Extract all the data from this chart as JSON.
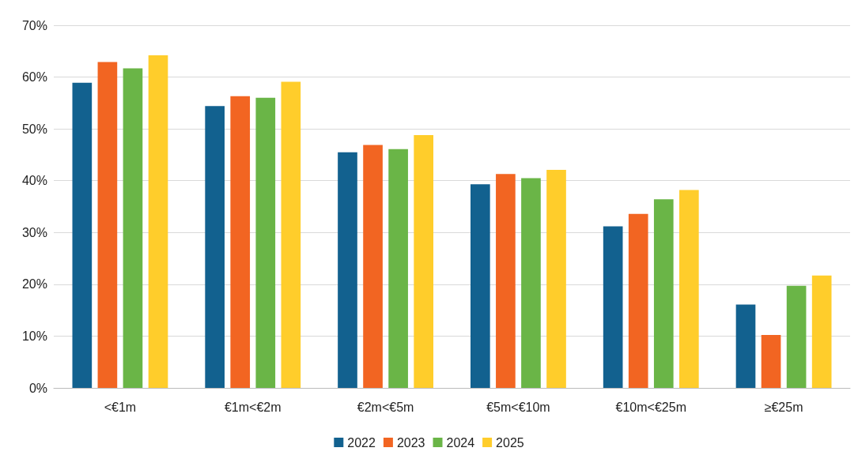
{
  "chart_data": {
    "type": "bar",
    "categories": [
      "<€1m",
      "€1m<€2m",
      "€2m<€5m",
      "€5m<€10m",
      "€10m<€25m",
      "≥€25m"
    ],
    "series": [
      {
        "name": "2022",
        "color": "#12618f",
        "values": [
          58.9,
          54.4,
          45.5,
          39.3,
          31.2,
          16.1
        ]
      },
      {
        "name": "2023",
        "color": "#f26522",
        "values": [
          62.9,
          56.3,
          46.9,
          41.3,
          33.6,
          10.2
        ]
      },
      {
        "name": "2024",
        "color": "#6ab547",
        "values": [
          61.7,
          56.0,
          46.1,
          40.5,
          36.4,
          19.7
        ]
      },
      {
        "name": "2025",
        "color": "#ffcd2b",
        "values": [
          64.2,
          59.1,
          48.8,
          42.1,
          38.2,
          21.7
        ]
      }
    ],
    "ylim": [
      0,
      70
    ],
    "yticks": [
      {
        "value": 0,
        "label": "0%"
      },
      {
        "value": 10,
        "label": "10%"
      },
      {
        "value": 20,
        "label": "20%"
      },
      {
        "value": 30,
        "label": "30%"
      },
      {
        "value": 40,
        "label": "40%"
      },
      {
        "value": 50,
        "label": "50%"
      },
      {
        "value": 60,
        "label": "60%"
      },
      {
        "value": 70,
        "label": "70%"
      }
    ],
    "grid": "y",
    "legend": "bottom"
  }
}
